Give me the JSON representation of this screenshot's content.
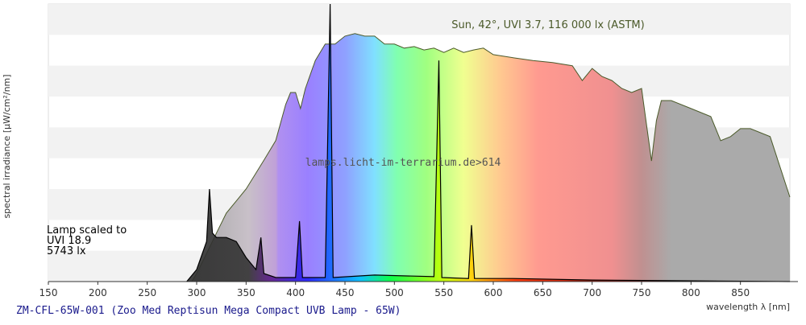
{
  "chart_data": {
    "type": "area",
    "subtitle": "lamps.licht-im-terrarium.de>614",
    "caption": "ZM-CFL-65W-001 (Zoo Med Reptisun Mega Compact UVB Lamp - 65W)",
    "x_label": "wavelength λ [nm]",
    "y_label": "spectral irradiance [µW/cm²/nm]",
    "annotations": [
      "Lamp scaled to",
      "UVI 18.9",
      "5743 lx"
    ],
    "xlim": [
      150,
      900
    ],
    "xticks": [
      150,
      200,
      250,
      300,
      350,
      400,
      450,
      500,
      550,
      600,
      650,
      700,
      750,
      800,
      850
    ],
    "ylim": [
      0,
      9
    ],
    "grid": true,
    "series": [
      {
        "name": "Sun, 42°, UVI 3.7, 116 000 lx (ASTM)",
        "color": "#4b5a2a",
        "x": [
          295,
          300,
          310,
          320,
          330,
          340,
          350,
          360,
          370,
          380,
          390,
          395,
          400,
          405,
          410,
          420,
          430,
          440,
          450,
          460,
          470,
          480,
          490,
          500,
          510,
          520,
          530,
          540,
          550,
          560,
          570,
          580,
          590,
          600,
          620,
          640,
          660,
          680,
          690,
          700,
          710,
          720,
          730,
          740,
          750,
          760,
          765,
          770,
          780,
          800,
          820,
          830,
          840,
          850,
          860,
          880,
          900
        ],
        "values": [
          0,
          0.26,
          0.91,
          1.57,
          2.22,
          2.61,
          3.0,
          3.52,
          4.04,
          4.57,
          5.74,
          6.13,
          6.13,
          5.61,
          6.26,
          7.17,
          7.7,
          7.7,
          7.96,
          8.04,
          7.96,
          7.96,
          7.7,
          7.7,
          7.57,
          7.62,
          7.51,
          7.57,
          7.43,
          7.57,
          7.43,
          7.51,
          7.57,
          7.36,
          7.26,
          7.17,
          7.1,
          7.0,
          6.52,
          6.91,
          6.65,
          6.52,
          6.26,
          6.13,
          6.26,
          3.91,
          5.22,
          5.87,
          5.87,
          5.61,
          5.35,
          4.57,
          4.7,
          4.96,
          4.96,
          4.7,
          2.74
        ]
      },
      {
        "color": "#000000",
        "x": [
          290,
          300,
          310,
          313,
          316,
          320,
          330,
          340,
          350,
          360,
          365,
          368,
          380,
          400,
          404,
          407,
          430,
          435,
          438,
          480,
          540,
          545,
          548,
          575,
          578,
          581,
          620,
          700,
          780,
          900
        ],
        "values": [
          0,
          0.39,
          1.3,
          3.0,
          1.57,
          1.43,
          1.43,
          1.3,
          0.78,
          0.39,
          1.43,
          0.26,
          0.13,
          0.13,
          1.96,
          0.13,
          0.13,
          9.0,
          0.13,
          0.21,
          0.16,
          7.17,
          0.13,
          0.1,
          1.83,
          0.1,
          0.1,
          0.05,
          0.03,
          0
        ]
      }
    ]
  }
}
